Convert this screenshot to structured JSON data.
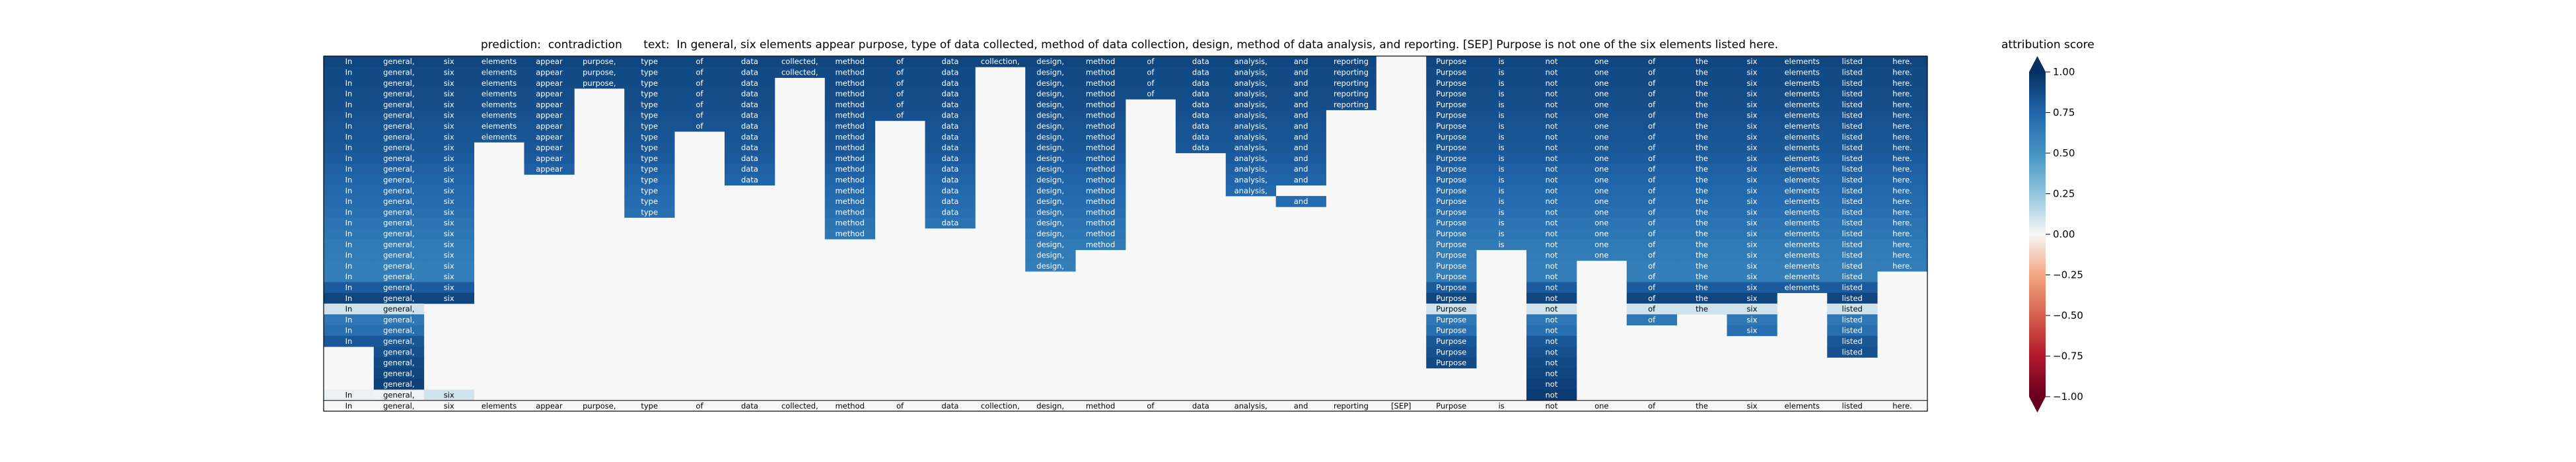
{
  "title_prefix": "prediction:",
  "prediction": "contradiction",
  "text_prefix": "text:",
  "text": "In general, six elements appear purpose, type of data collected, method of data collection, design, method of data analysis, and reporting. [SEP] Purpose is not one of the six elements listed here.",
  "chart_data": {
    "type": "heatmap",
    "tokens": [
      "In",
      "general,",
      "six",
      "elements",
      "appear",
      "purpose,",
      "type",
      "of",
      "data",
      "collected,",
      "method",
      "of",
      "data",
      "collection,",
      "design,",
      "method",
      "of",
      "data",
      "analysis,",
      "and",
      "reporting",
      "[SEP]",
      "Purpose",
      "is",
      "not",
      "one",
      "of",
      "the",
      "six",
      "elements",
      "listed",
      "here."
    ],
    "colorbar_label": "attribution score",
    "colorbar_ticks": [
      "1.00",
      "0.75",
      "0.50",
      "0.25",
      "0.00",
      "−0.25",
      "−0.50",
      "−0.75",
      "−1.00"
    ],
    "colorbar_range": [
      -1,
      1
    ],
    "colormap": "RdBu",
    "rows": [
      [
        0.9,
        0.9,
        0.9,
        0.9,
        0.9,
        0.9,
        0.9,
        0.9,
        0.9,
        0.9,
        0.9,
        0.9,
        0.9,
        0.9,
        0.9,
        0.9,
        0.9,
        0.9,
        0.9,
        0.9,
        0.9,
        0.0,
        0.9,
        0.9,
        0.9,
        0.9,
        0.9,
        0.9,
        0.9,
        0.9,
        0.9,
        0.9
      ],
      [
        0.88,
        0.88,
        0.88,
        0.88,
        0.88,
        0.88,
        0.88,
        0.88,
        0.88,
        0.88,
        0.88,
        0.88,
        0.88,
        0.0,
        0.88,
        0.88,
        0.88,
        0.88,
        0.88,
        0.88,
        0.88,
        0.0,
        0.88,
        0.88,
        0.88,
        0.88,
        0.88,
        0.88,
        0.88,
        0.88,
        0.88,
        0.88
      ],
      [
        0.88,
        0.88,
        0.88,
        0.88,
        0.88,
        0.88,
        0.88,
        0.88,
        0.88,
        0.0,
        0.88,
        0.88,
        0.88,
        0.0,
        0.88,
        0.88,
        0.88,
        0.88,
        0.88,
        0.88,
        0.88,
        0.0,
        0.88,
        0.88,
        0.88,
        0.88,
        0.88,
        0.88,
        0.88,
        0.88,
        0.88,
        0.88
      ],
      [
        0.87,
        0.87,
        0.87,
        0.87,
        0.87,
        0.0,
        0.87,
        0.87,
        0.87,
        0.0,
        0.87,
        0.87,
        0.87,
        0.0,
        0.87,
        0.87,
        0.87,
        0.87,
        0.87,
        0.87,
        0.87,
        0.0,
        0.87,
        0.87,
        0.87,
        0.87,
        0.87,
        0.87,
        0.87,
        0.87,
        0.87,
        0.87
      ],
      [
        0.86,
        0.86,
        0.86,
        0.86,
        0.86,
        0.0,
        0.86,
        0.86,
        0.86,
        0.0,
        0.86,
        0.86,
        0.86,
        0.0,
        0.86,
        0.86,
        0.0,
        0.86,
        0.86,
        0.86,
        0.86,
        0.0,
        0.86,
        0.86,
        0.86,
        0.86,
        0.86,
        0.86,
        0.86,
        0.86,
        0.86,
        0.86
      ],
      [
        0.85,
        0.85,
        0.85,
        0.85,
        0.85,
        0.0,
        0.85,
        0.85,
        0.85,
        0.0,
        0.85,
        0.85,
        0.85,
        0.0,
        0.85,
        0.85,
        0.0,
        0.85,
        0.85,
        0.85,
        0.0,
        0.0,
        0.85,
        0.85,
        0.85,
        0.85,
        0.85,
        0.85,
        0.85,
        0.85,
        0.85,
        0.85
      ],
      [
        0.84,
        0.84,
        0.84,
        0.84,
        0.84,
        0.0,
        0.84,
        0.84,
        0.84,
        0.0,
        0.84,
        0.0,
        0.84,
        0.0,
        0.84,
        0.84,
        0.0,
        0.84,
        0.84,
        0.84,
        0.0,
        0.0,
        0.84,
        0.84,
        0.84,
        0.84,
        0.84,
        0.84,
        0.84,
        0.84,
        0.84,
        0.84
      ],
      [
        0.83,
        0.83,
        0.83,
        0.83,
        0.83,
        0.0,
        0.83,
        0.0,
        0.83,
        0.0,
        0.83,
        0.0,
        0.83,
        0.0,
        0.83,
        0.83,
        0.0,
        0.83,
        0.83,
        0.83,
        0.0,
        0.0,
        0.83,
        0.83,
        0.83,
        0.83,
        0.83,
        0.83,
        0.83,
        0.83,
        0.83,
        0.83
      ],
      [
        0.82,
        0.82,
        0.82,
        0.0,
        0.82,
        0.0,
        0.82,
        0.0,
        0.82,
        0.0,
        0.82,
        0.0,
        0.82,
        0.0,
        0.82,
        0.82,
        0.0,
        0.82,
        0.82,
        0.82,
        0.0,
        0.0,
        0.82,
        0.82,
        0.82,
        0.82,
        0.82,
        0.82,
        0.82,
        0.82,
        0.82,
        0.82
      ],
      [
        0.8,
        0.8,
        0.8,
        0.0,
        0.8,
        0.0,
        0.8,
        0.0,
        0.8,
        0.0,
        0.8,
        0.0,
        0.8,
        0.0,
        0.8,
        0.8,
        0.0,
        0.0,
        0.8,
        0.8,
        0.0,
        0.0,
        0.8,
        0.8,
        0.8,
        0.8,
        0.8,
        0.8,
        0.8,
        0.8,
        0.8,
        0.8
      ],
      [
        0.78,
        0.78,
        0.78,
        0.0,
        0.78,
        0.0,
        0.78,
        0.0,
        0.78,
        0.0,
        0.78,
        0.0,
        0.78,
        0.0,
        0.78,
        0.78,
        0.0,
        0.0,
        0.78,
        0.78,
        0.0,
        0.0,
        0.78,
        0.78,
        0.78,
        0.78,
        0.78,
        0.78,
        0.78,
        0.78,
        0.78,
        0.78
      ],
      [
        0.76,
        0.76,
        0.76,
        0.0,
        0.0,
        0.0,
        0.76,
        0.0,
        0.76,
        0.0,
        0.76,
        0.0,
        0.76,
        0.0,
        0.76,
        0.76,
        0.0,
        0.0,
        0.76,
        0.76,
        0.0,
        0.0,
        0.76,
        0.76,
        0.76,
        0.76,
        0.76,
        0.76,
        0.76,
        0.76,
        0.76,
        0.76
      ],
      [
        0.74,
        0.74,
        0.74,
        0.0,
        0.0,
        0.0,
        0.74,
        0.0,
        0.0,
        0.0,
        0.74,
        0.0,
        0.74,
        0.0,
        0.74,
        0.74,
        0.0,
        0.0,
        0.74,
        0.0,
        0.0,
        0.0,
        0.74,
        0.74,
        0.74,
        0.74,
        0.74,
        0.74,
        0.74,
        0.74,
        0.74,
        0.74
      ],
      [
        0.72,
        0.72,
        0.72,
        0.0,
        0.0,
        0.0,
        0.72,
        0.0,
        0.0,
        0.0,
        0.72,
        0.0,
        0.72,
        0.0,
        0.72,
        0.72,
        0.0,
        0.0,
        0.0,
        0.72,
        0.0,
        0.0,
        0.72,
        0.72,
        0.72,
        0.72,
        0.72,
        0.72,
        0.72,
        0.72,
        0.72,
        0.72
      ],
      [
        0.7,
        0.7,
        0.7,
        0.0,
        0.0,
        0.0,
        0.7,
        0.0,
        0.0,
        0.0,
        0.7,
        0.0,
        0.7,
        0.0,
        0.7,
        0.7,
        0.0,
        0.0,
        0.0,
        0.0,
        0.0,
        0.0,
        0.7,
        0.7,
        0.7,
        0.7,
        0.7,
        0.7,
        0.7,
        0.7,
        0.7,
        0.7
      ],
      [
        0.68,
        0.68,
        0.68,
        0.0,
        0.0,
        0.0,
        0.0,
        0.0,
        0.0,
        0.0,
        0.68,
        0.0,
        0.68,
        0.0,
        0.68,
        0.68,
        0.0,
        0.0,
        0.0,
        0.0,
        0.0,
        0.0,
        0.68,
        0.68,
        0.68,
        0.68,
        0.68,
        0.68,
        0.68,
        0.68,
        0.68,
        0.68
      ],
      [
        0.66,
        0.66,
        0.66,
        0.0,
        0.0,
        0.0,
        0.0,
        0.0,
        0.0,
        0.0,
        0.66,
        0.0,
        0.0,
        0.0,
        0.66,
        0.66,
        0.0,
        0.0,
        0.0,
        0.0,
        0.0,
        0.0,
        0.66,
        0.66,
        0.66,
        0.66,
        0.66,
        0.66,
        0.66,
        0.66,
        0.66,
        0.66
      ],
      [
        0.64,
        0.64,
        0.64,
        0.0,
        0.0,
        0.0,
        0.0,
        0.0,
        0.0,
        0.0,
        0.0,
        0.0,
        0.0,
        0.0,
        0.64,
        0.64,
        0.0,
        0.0,
        0.0,
        0.0,
        0.0,
        0.0,
        0.64,
        0.64,
        0.64,
        0.64,
        0.64,
        0.64,
        0.64,
        0.64,
        0.64,
        0.64
      ],
      [
        0.63,
        0.63,
        0.63,
        0.0,
        0.0,
        0.0,
        0.0,
        0.0,
        0.0,
        0.0,
        0.0,
        0.0,
        0.0,
        0.0,
        0.63,
        0.0,
        0.0,
        0.0,
        0.0,
        0.0,
        0.0,
        0.0,
        0.63,
        0.0,
        0.63,
        0.63,
        0.63,
        0.63,
        0.63,
        0.63,
        0.63,
        0.63
      ],
      [
        0.62,
        0.62,
        0.62,
        0.0,
        0.0,
        0.0,
        0.0,
        0.0,
        0.0,
        0.0,
        0.0,
        0.0,
        0.0,
        0.0,
        0.62,
        0.0,
        0.0,
        0.0,
        0.0,
        0.0,
        0.0,
        0.0,
        0.62,
        0.0,
        0.62,
        0.0,
        0.62,
        0.62,
        0.62,
        0.62,
        0.62,
        0.62
      ],
      [
        0.62,
        0.62,
        0.62,
        0.0,
        0.0,
        0.0,
        0.0,
        0.0,
        0.0,
        0.0,
        0.0,
        0.0,
        0.0,
        0.0,
        0.0,
        0.0,
        0.0,
        0.0,
        0.0,
        0.0,
        0.0,
        0.0,
        0.62,
        0.0,
        0.62,
        0.0,
        0.62,
        0.62,
        0.62,
        0.62,
        0.62,
        0.0
      ],
      [
        0.8,
        0.8,
        0.8,
        0.0,
        0.0,
        0.0,
        0.0,
        0.0,
        0.0,
        0.0,
        0.0,
        0.0,
        0.0,
        0.0,
        0.0,
        0.0,
        0.0,
        0.0,
        0.0,
        0.0,
        0.0,
        0.0,
        0.8,
        0.0,
        0.8,
        0.0,
        0.8,
        0.8,
        0.8,
        0.8,
        0.8,
        0.0
      ],
      [
        0.9,
        0.9,
        0.9,
        0.0,
        0.0,
        0.0,
        0.0,
        0.0,
        0.0,
        0.0,
        0.0,
        0.0,
        0.0,
        0.0,
        0.0,
        0.0,
        0.0,
        0.0,
        0.0,
        0.0,
        0.0,
        0.0,
        0.9,
        0.0,
        0.9,
        0.0,
        0.9,
        0.9,
        0.9,
        0.0,
        0.9,
        0.0
      ],
      [
        0.1,
        0.1,
        0.0,
        0.0,
        0.0,
        0.0,
        0.0,
        0.0,
        0.0,
        0.0,
        0.0,
        0.0,
        0.0,
        0.0,
        0.0,
        0.0,
        0.0,
        0.0,
        0.0,
        0.0,
        0.0,
        0.0,
        0.1,
        0.0,
        0.1,
        0.0,
        0.1,
        0.1,
        0.1,
        0.0,
        0.1,
        0.0
      ],
      [
        0.65,
        0.65,
        0.0,
        0.0,
        0.0,
        0.0,
        0.0,
        0.0,
        0.0,
        0.0,
        0.0,
        0.0,
        0.0,
        0.0,
        0.0,
        0.0,
        0.0,
        0.0,
        0.0,
        0.0,
        0.0,
        0.0,
        0.65,
        0.0,
        0.65,
        0.0,
        0.65,
        0.0,
        0.65,
        0.0,
        0.65,
        0.0
      ],
      [
        0.7,
        0.7,
        0.0,
        0.0,
        0.0,
        0.0,
        0.0,
        0.0,
        0.0,
        0.0,
        0.0,
        0.0,
        0.0,
        0.0,
        0.0,
        0.0,
        0.0,
        0.0,
        0.0,
        0.0,
        0.0,
        0.0,
        0.7,
        0.0,
        0.7,
        0.0,
        0.0,
        0.0,
        0.7,
        0.0,
        0.7,
        0.0
      ],
      [
        0.82,
        0.82,
        0.0,
        0.0,
        0.0,
        0.0,
        0.0,
        0.0,
        0.0,
        0.0,
        0.0,
        0.0,
        0.0,
        0.0,
        0.0,
        0.0,
        0.0,
        0.0,
        0.0,
        0.0,
        0.0,
        0.0,
        0.82,
        0.0,
        0.82,
        0.0,
        0.0,
        0.0,
        0.0,
        0.0,
        0.82,
        0.0
      ],
      [
        0.0,
        0.85,
        0.0,
        0.0,
        0.0,
        0.0,
        0.0,
        0.0,
        0.0,
        0.0,
        0.0,
        0.0,
        0.0,
        0.0,
        0.0,
        0.0,
        0.0,
        0.0,
        0.0,
        0.0,
        0.0,
        0.0,
        0.85,
        0.0,
        0.85,
        0.0,
        0.0,
        0.0,
        0.0,
        0.0,
        0.85,
        0.0
      ],
      [
        0.0,
        0.88,
        0.0,
        0.0,
        0.0,
        0.0,
        0.0,
        0.0,
        0.0,
        0.0,
        0.0,
        0.0,
        0.0,
        0.0,
        0.0,
        0.0,
        0.0,
        0.0,
        0.0,
        0.0,
        0.0,
        0.0,
        0.88,
        0.0,
        0.88,
        0.0,
        0.0,
        0.0,
        0.0,
        0.0,
        0.0,
        0.0
      ],
      [
        0.0,
        0.9,
        0.0,
        0.0,
        0.0,
        0.0,
        0.0,
        0.0,
        0.0,
        0.0,
        0.0,
        0.0,
        0.0,
        0.0,
        0.0,
        0.0,
        0.0,
        0.0,
        0.0,
        0.0,
        0.0,
        0.0,
        0.0,
        0.0,
        0.9,
        0.0,
        0.0,
        0.0,
        0.0,
        0.0,
        0.0,
        0.0
      ],
      [
        0.0,
        0.92,
        0.0,
        0.0,
        0.0,
        0.0,
        0.0,
        0.0,
        0.0,
        0.0,
        0.0,
        0.0,
        0.0,
        0.0,
        0.0,
        0.0,
        0.0,
        0.0,
        0.0,
        0.0,
        0.0,
        0.0,
        0.0,
        0.0,
        0.92,
        0.0,
        0.0,
        0.0,
        0.0,
        0.0,
        0.0,
        0.0
      ],
      [
        0.03,
        0.02,
        0.1,
        0.0,
        0.0,
        0.0,
        0.0,
        0.0,
        0.0,
        0.0,
        0.0,
        0.0,
        0.0,
        0.0,
        0.0,
        0.0,
        0.0,
        0.0,
        0.0,
        0.0,
        0.0,
        0.0,
        0.0,
        0.0,
        0.95,
        0.0,
        0.0,
        0.0,
        0.0,
        0.0,
        0.0,
        0.0
      ]
    ]
  }
}
